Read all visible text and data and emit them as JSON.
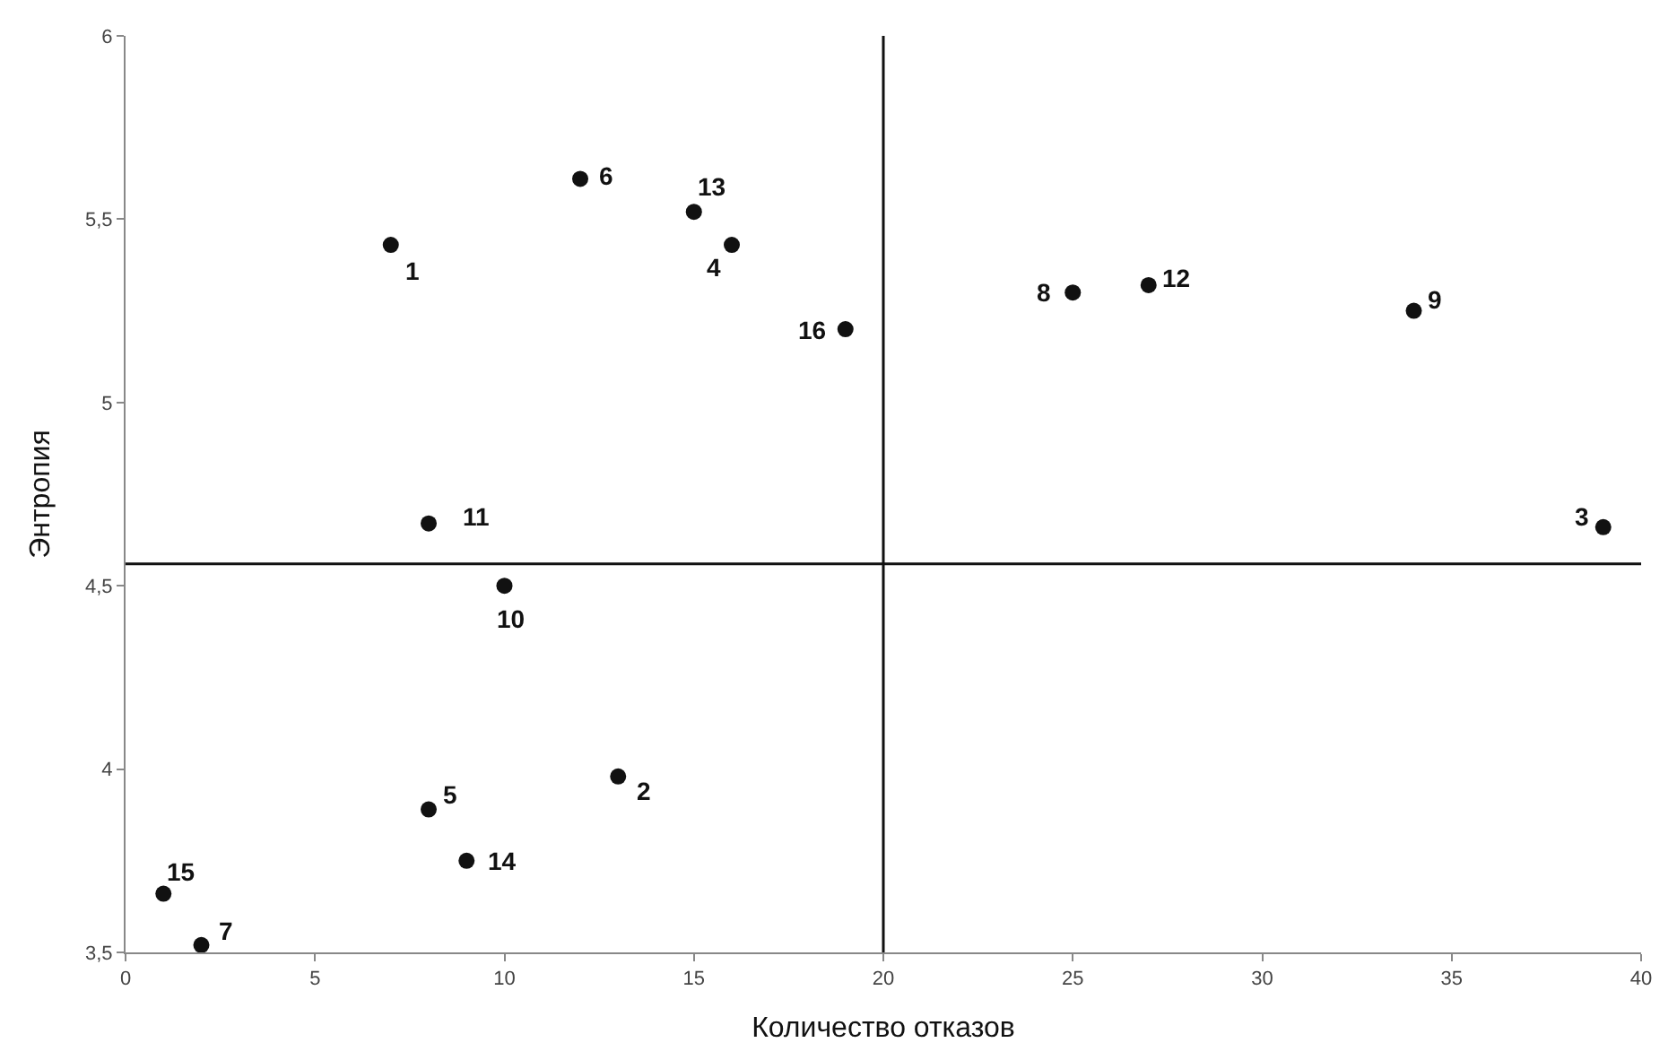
{
  "chart_data": {
    "type": "scatter",
    "xlabel": "Количество отказов",
    "ylabel": "Энтропия",
    "x": [
      7,
      12,
      15,
      16,
      19,
      25,
      27,
      34,
      39,
      8,
      10,
      8,
      13,
      9,
      1,
      2
    ],
    "series": [
      {
        "color": "#111111",
        "values": [
          5.43,
          5.61,
          5.52,
          5.43,
          5.2,
          5.3,
          5.32,
          5.25,
          4.66,
          4.67,
          4.5,
          3.89,
          3.98,
          3.75,
          3.66,
          3.52
        ]
      }
    ],
    "marker": "circle",
    "xlim": [
      0,
      40
    ],
    "xticks": [
      0,
      5,
      10,
      15,
      20,
      25,
      30,
      35,
      40
    ],
    "ylim": [
      3.5,
      6
    ],
    "yticks": [
      {
        "value": 3.5,
        "label": "3,5"
      },
      4,
      {
        "value": 4.5,
        "label": "4,5"
      },
      5,
      {
        "value": 5.5,
        "label": "5,5"
      },
      6
    ],
    "ref_lines": [
      {
        "axis": "x",
        "value": 20,
        "color": "#111111"
      },
      {
        "axis": "y",
        "value": 4.56,
        "color": "#111111"
      }
    ],
    "annotations": [
      {
        "text": "1",
        "x": 7,
        "y": 5.43
      },
      {
        "text": "6",
        "x": 12,
        "y": 5.61
      },
      {
        "text": "13",
        "x": 15,
        "y": 5.52
      },
      {
        "text": "4",
        "x": 16,
        "y": 5.43
      },
      {
        "text": "16",
        "x": 19,
        "y": 5.2
      },
      {
        "text": "8",
        "x": 25,
        "y": 5.3
      },
      {
        "text": "12",
        "x": 27,
        "y": 5.32
      },
      {
        "text": "9",
        "x": 34,
        "y": 5.25
      },
      {
        "text": "3",
        "x": 39,
        "y": 4.66
      },
      {
        "text": "11",
        "x": 8,
        "y": 4.67
      },
      {
        "text": "10",
        "x": 10,
        "y": 4.5
      },
      {
        "text": "5",
        "x": 8,
        "y": 3.89
      },
      {
        "text": "2",
        "x": 13,
        "y": 3.98
      },
      {
        "text": "14",
        "x": 9,
        "y": 3.75
      },
      {
        "text": "15",
        "x": 1,
        "y": 3.66
      },
      {
        "text": "7",
        "x": 2,
        "y": 3.52
      }
    ]
  }
}
